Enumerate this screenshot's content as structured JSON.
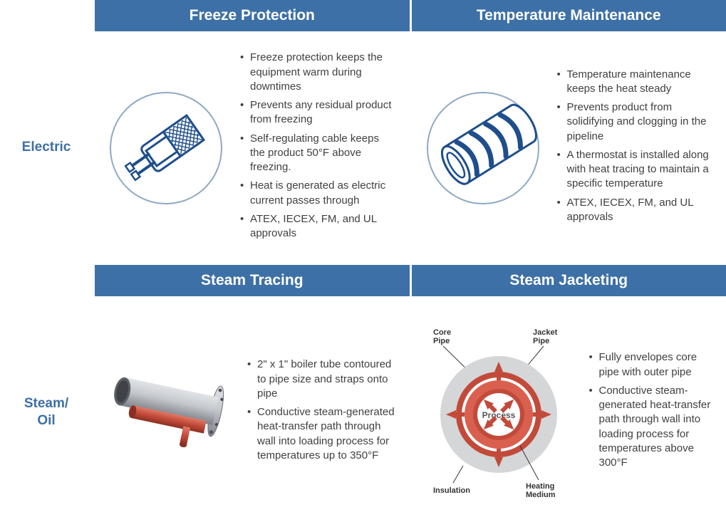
{
  "colors": {
    "header_bg": "#3d70a6",
    "header_fg": "#ffffff",
    "row_label_fg": "#3d70a6",
    "text_fg": "#404040",
    "electric_stroke": "#1f4e8c",
    "circle_stroke": "#8fa9c4",
    "steam_pipe_body": "#b9bdc2",
    "steam_pipe_dark": "#7c8087",
    "steam_red": "#c24a3a",
    "jacket_grey": "#d5d6d8",
    "jacket_red_outer": "#c24a3a",
    "jacket_red_inner": "#d9604f",
    "jacket_white": "#ffffff"
  },
  "rows": {
    "electric": {
      "label": "Electric"
    },
    "steam_oil": {
      "label": "Steam/\nOil"
    }
  },
  "cells": {
    "freeze_protection": {
      "header": "Freeze Protection",
      "bullets": [
        "Freeze protection keeps the equipment warm during downtimes",
        "Prevents any residual product from freezing",
        "Self-regulating cable keeps the product 50°F above freezing.",
        "Heat is generated as electric current passes through",
        "ATEX, IECEX, FM, and UL approvals"
      ]
    },
    "temperature_maintenance": {
      "header": "Temperature Maintenance",
      "bullets": [
        "Temperature maintenance keeps the heat steady",
        "Prevents product from solidifying and clogging in the pipeline",
        "A thermostat is installed along with heat tracing to maintain a specific temperature",
        "ATEX, IECEX, FM, and UL approvals"
      ]
    },
    "steam_tracing": {
      "header": "Steam Tracing",
      "bullets": [
        "2\" x 1\" boiler tube contoured to pipe size and straps onto pipe",
        "Conductive steam-generated heat-transfer path through wall into loading process for temperatures up to 350°F"
      ]
    },
    "steam_jacketing": {
      "header": "Steam Jacketing",
      "bullets": [
        "Fully envelopes core pipe with outer pipe",
        "Conductive steam-generated heat-transfer path through wall into loading process for temperatures above 300°F"
      ],
      "diagram_labels": {
        "core_pipe": "Core\nPipe",
        "jacket_pipe": "Jacket\nPipe",
        "process": "Process",
        "insulation": "Insulation",
        "heating_medium": "Heating\nMedium"
      }
    }
  }
}
